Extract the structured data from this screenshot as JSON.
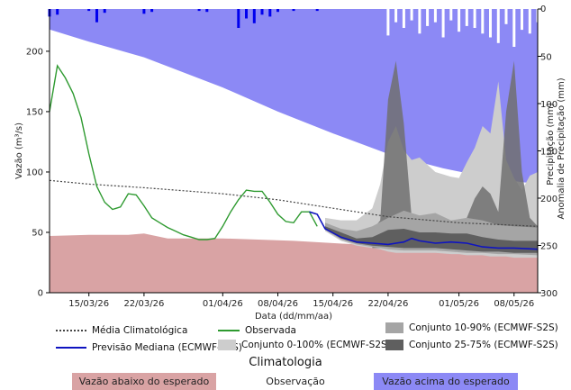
{
  "chart_data": {
    "type": "area",
    "xlabel": "Data (dd/mm/aa)",
    "ylabel_left": "Vazão (m³/s)",
    "ylabel_right": "Precipitação (mm)",
    "ylabel_right_overlap": "Anomalia de Precipitação (mm)",
    "ylim_left": [
      0,
      235
    ],
    "ylim_right_inverted": [
      300,
      0
    ],
    "yticks_left": [
      "0",
      "50",
      "100",
      "150",
      "200"
    ],
    "yticks_right": [
      "0",
      "50",
      "100",
      "150",
      "200",
      "250",
      "300"
    ],
    "xticks": [
      "15/03/26",
      "22/03/26",
      "01/04/26",
      "08/04/26",
      "15/04/26",
      "22/04/26",
      "01/05/26",
      "08/05/26"
    ],
    "x_start": "10/03/26",
    "x_end": "11/05/26",
    "climatology_low": {
      "dates": [
        "10/03/26",
        "15/03/26",
        "20/03/26",
        "22/03/26",
        "25/03/26",
        "01/04/26",
        "10/04/26",
        "18/04/26",
        "25/04/26",
        "02/05/26",
        "11/05/26"
      ],
      "values": [
        47,
        48,
        48,
        49,
        45,
        45,
        43,
        40,
        36,
        35,
        34
      ]
    },
    "climatology_high": {
      "dates": [
        "10/03/26",
        "15/03/26",
        "22/03/26",
        "01/04/26",
        "08/04/26",
        "15/04/26",
        "22/04/26",
        "29/04/26",
        "05/05/26",
        "11/05/26"
      ],
      "values": [
        218,
        208,
        195,
        170,
        150,
        132,
        115,
        103,
        95,
        90
      ]
    },
    "media_climatologica": {
      "dates": [
        "10/03/26",
        "15/03/26",
        "22/03/26",
        "01/04/26",
        "08/04/26",
        "15/04/26",
        "22/04/26",
        "01/05/26",
        "11/05/26"
      ],
      "values": [
        93,
        90,
        87,
        82,
        77,
        70,
        63,
        58,
        55
      ]
    },
    "observada": {
      "dates": [
        "10/03/26",
        "11/03/26",
        "12/03/26",
        "13/03/26",
        "14/03/26",
        "15/03/26",
        "16/03/26",
        "17/03/26",
        "18/03/26",
        "19/03/26",
        "20/03/26",
        "21/03/26",
        "22/03/26",
        "23/03/26",
        "24/03/26",
        "25/03/26",
        "26/03/26",
        "27/03/26",
        "28/03/26",
        "29/03/26",
        "30/03/26",
        "31/03/26",
        "01/04/26",
        "02/04/26",
        "03/04/26",
        "04/04/26",
        "05/04/26",
        "06/04/26",
        "07/04/26",
        "08/04/26",
        "09/04/26",
        "10/04/26",
        "11/04/26",
        "12/04/26",
        "13/04/26"
      ],
      "values": [
        150,
        188,
        178,
        165,
        145,
        115,
        88,
        75,
        69,
        71,
        82,
        81,
        72,
        62,
        58,
        54,
        51,
        48,
        46,
        44,
        44,
        45,
        55,
        67,
        77,
        85,
        84,
        84,
        75,
        65,
        59,
        58,
        67,
        67,
        55
      ]
    },
    "previsao_mediana": {
      "dates": [
        "12/04/26",
        "13/04/26",
        "14/04/26",
        "16/04/26",
        "18/04/26",
        "20/04/26",
        "22/04/26",
        "23/04/26",
        "24/04/26",
        "25/04/26",
        "26/04/26",
        "28/04/26",
        "30/04/26",
        "02/05/26",
        "04/05/26",
        "06/05/26",
        "08/05/26",
        "11/05/26"
      ],
      "values": [
        67,
        65,
        53,
        46,
        42,
        41,
        40,
        41,
        42,
        45,
        43,
        41,
        42,
        41,
        38,
        37,
        37,
        36
      ]
    },
    "conjunto_25_75": {
      "dates": [
        "14/04/26",
        "16/04/26",
        "18/04/26",
        "20/04/26",
        "22/04/26",
        "24/04/26",
        "26/04/26",
        "28/04/26",
        "30/04/26",
        "02/05/26",
        "04/05/26",
        "06/05/26",
        "08/05/26",
        "11/05/26"
      ],
      "low": [
        53,
        45,
        41,
        39,
        38,
        37,
        37,
        37,
        36,
        35,
        34,
        34,
        33,
        33
      ],
      "high": [
        55,
        50,
        45,
        46,
        52,
        53,
        50,
        50,
        49,
        49,
        46,
        44,
        43,
        43
      ]
    },
    "conjunto_10_90": {
      "dates": [
        "14/04/26",
        "16/04/26",
        "18/04/26",
        "20/04/26",
        "22/04/26",
        "24/04/26",
        "26/04/26",
        "28/04/26",
        "30/04/26",
        "02/05/26",
        "04/05/26",
        "06/05/26",
        "08/05/26",
        "11/05/26"
      ],
      "low": [
        52,
        44,
        40,
        38,
        36,
        35,
        35,
        35,
        34,
        33,
        33,
        32,
        32,
        31
      ],
      "high": [
        58,
        53,
        51,
        55,
        62,
        68,
        64,
        66,
        60,
        62,
        60,
        56,
        55,
        54
      ]
    },
    "conjunto_0_100": {
      "dates": [
        "14/04/26",
        "16/04/26",
        "18/04/26",
        "20/04/26",
        "21/04/26",
        "22/04/26",
        "23/04/26",
        "24/04/26",
        "25/04/26",
        "26/04/26",
        "28/04/26",
        "30/04/26",
        "01/05/26",
        "02/05/26",
        "03/05/26",
        "04/05/26",
        "05/05/26",
        "06/05/26",
        "07/05/26",
        "08/05/26",
        "09/05/26",
        "10/05/26",
        "11/05/26"
      ],
      "low": [
        51,
        43,
        39,
        37,
        36,
        34,
        33,
        33,
        33,
        33,
        33,
        32,
        32,
        31,
        31,
        31,
        30,
        30,
        30,
        29,
        29,
        29,
        29
      ],
      "high": [
        62,
        60,
        60,
        70,
        90,
        125,
        138,
        118,
        110,
        112,
        100,
        96,
        95,
        108,
        120,
        138,
        132,
        175,
        110,
        95,
        85,
        97,
        100
      ]
    },
    "dark_peaks": {
      "dates": [
        "20/04/26",
        "21/04/26",
        "22/04/26",
        "23/04/26",
        "24/04/26",
        "25/04/26",
        "26/04/26",
        "27/04/26",
        "28/04/26",
        "29/04/26",
        "30/04/26",
        "01/05/26",
        "02/05/26",
        "03/05/26",
        "04/05/26",
        "05/05/26",
        "06/05/26",
        "07/05/26",
        "08/05/26",
        "09/05/26",
        "10/05/26",
        "11/05/26"
      ],
      "values": [
        52,
        60,
        160,
        192,
        140,
        62,
        56,
        55,
        53,
        55,
        52,
        55,
        62,
        78,
        88,
        82,
        67,
        150,
        192,
        100,
        62,
        55
      ]
    },
    "precip_obs": {
      "dates": [
        "10/03/26",
        "11/03/26",
        "15/03/26",
        "16/03/26",
        "17/03/26",
        "22/03/26",
        "23/03/26",
        "29/03/26",
        "30/03/26",
        "03/04/26",
        "04/04/26",
        "05/04/26",
        "06/04/26",
        "07/04/26",
        "08/04/26",
        "10/04/26",
        "13/04/26"
      ],
      "values": [
        8,
        6,
        2,
        14,
        4,
        5,
        3,
        2,
        3,
        20,
        10,
        15,
        6,
        8,
        3,
        2,
        2
      ]
    },
    "precip_prev": {
      "dates": [
        "22/04/26",
        "23/04/26",
        "24/04/26",
        "25/04/26",
        "26/04/26",
        "27/04/26",
        "28/04/26",
        "29/04/26",
        "30/04/26",
        "01/05/26",
        "02/05/26",
        "03/05/26",
        "04/05/26",
        "05/05/26",
        "06/05/26",
        "07/05/26",
        "08/05/26",
        "09/05/26",
        "10/05/26",
        "11/05/26"
      ],
      "values": [
        28,
        14,
        20,
        12,
        26,
        18,
        14,
        30,
        12,
        24,
        18,
        20,
        26,
        30,
        36,
        16,
        40,
        22,
        26,
        14
      ]
    },
    "colors": {
      "climatologia_baixa": "#d9a3a4",
      "climatologia_alta": "#8c89f5",
      "observada": "#2e9a30",
      "previsao_mediana": "#0f14c0",
      "media_climatologica": "#444444",
      "conjunto_0_100": "#cdcdcd",
      "conjunto_10_90": "#a5a5a5",
      "conjunto_25_75": "#5f5f5f",
      "dark_peaks": "#707070",
      "precip_obs": "#0000ee",
      "precip_prev": "#ffffff"
    }
  },
  "legend": {
    "media_climatologica": "Média Climatológica",
    "observada": "Observada",
    "conjunto_10_90": "Conjunto 10-90% (ECMWF-S2S)",
    "previsao_mediana": "Previsão Mediana (ECMWF-S2S)",
    "conjunto_0_100": "Conjunto 0-100% (ECMWF-S2S)",
    "conjunto_25_75": "Conjunto 25-75% (ECMWF-S2S)"
  },
  "climatologia": {
    "title": "Climatologia",
    "abaixo": "Vazão abaixo do esperado",
    "observacao": "Observação",
    "acima": "Vazão acima do esperado"
  }
}
